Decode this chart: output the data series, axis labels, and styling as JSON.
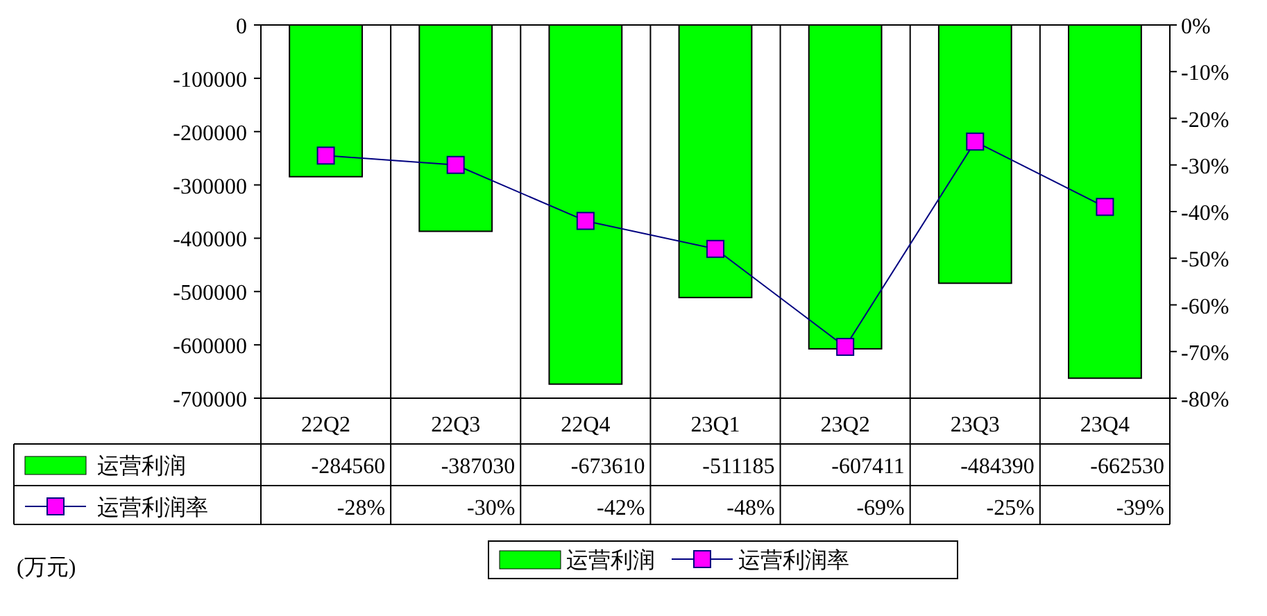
{
  "chart_data": {
    "type": "bar",
    "categories": [
      "22Q2",
      "22Q3",
      "22Q4",
      "23Q1",
      "23Q2",
      "23Q3",
      "23Q4"
    ],
    "series": [
      {
        "name": "运营利润",
        "color": "#00ff00",
        "values": [
          -284560,
          -387030,
          -673610,
          -511185,
          -607411,
          -484390,
          -662530
        ],
        "value_labels": [
          "-284560",
          "-387030",
          "-673610",
          "-511185",
          "-607411",
          "-484390",
          "-662530"
        ]
      },
      {
        "name": "运营利润率",
        "type": "line",
        "axis": "y2",
        "color": "#000080",
        "marker": "square",
        "values": [
          -28,
          -30,
          -42,
          -48,
          -69,
          -25,
          -39
        ],
        "value_labels": [
          "-28%",
          "-30%",
          "-42%",
          "-48%",
          "-69%",
          "-25%",
          "-39%"
        ]
      }
    ],
    "ylim": [
      -700000,
      0
    ],
    "yticks": [
      0,
      -100000,
      -200000,
      -300000,
      -400000,
      -500000,
      -600000,
      -700000
    ],
    "y2lim": [
      -80,
      0
    ],
    "y2ticks": [
      {
        "value": 0,
        "label": "0%"
      },
      {
        "value": -10,
        "label": "-10%"
      },
      {
        "value": -20,
        "label": "-20%"
      },
      {
        "value": -30,
        "label": "-30%"
      },
      {
        "value": -40,
        "label": "-40%"
      },
      {
        "value": -50,
        "label": "-50%"
      },
      {
        "value": -60,
        "label": "-60%"
      },
      {
        "value": -70,
        "label": "-70%"
      },
      {
        "value": -80,
        "label": "-80%"
      }
    ],
    "grid": "x",
    "legend": "bottom",
    "annotations": [
      "(万元)"
    ]
  }
}
